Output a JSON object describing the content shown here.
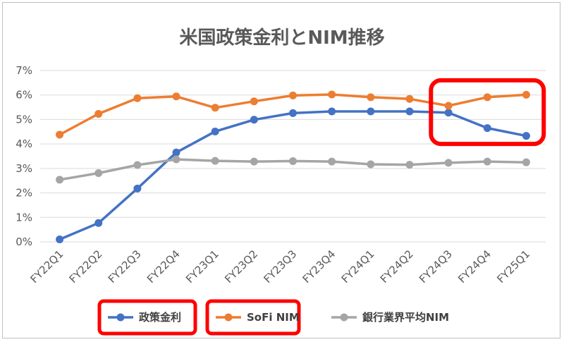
{
  "chart_data": {
    "type": "line",
    "title": "米国政策金利とNIM推移",
    "xlabel": "",
    "ylabel": "",
    "categories": [
      "FY22Q1",
      "FY22Q2",
      "FY22Q3",
      "FY22Q4",
      "FY23Q1",
      "FY23Q2",
      "FY23Q3",
      "FY23Q4",
      "FY24Q1",
      "FY24Q2",
      "FY24Q3",
      "FY24Q4",
      "FY25Q1"
    ],
    "yticks": [
      "0%",
      "1%",
      "2%",
      "3%",
      "4%",
      "5%",
      "6%",
      "7%"
    ],
    "ylim": [
      0,
      7
    ],
    "grid": true,
    "legend_position": "bottom",
    "series": [
      {
        "name": "政策金利",
        "color": "#4472C4",
        "values": [
          0.1,
          0.77,
          2.18,
          3.65,
          4.51,
          4.99,
          5.26,
          5.33,
          5.33,
          5.33,
          5.28,
          4.65,
          4.33
        ]
      },
      {
        "name": "SoFi NIM",
        "color": "#ED7D31",
        "values": [
          4.38,
          5.23,
          5.87,
          5.94,
          5.48,
          5.74,
          5.98,
          6.02,
          5.91,
          5.84,
          5.56,
          5.91,
          6.01
        ]
      },
      {
        "name": "銀行業界平均NIM",
        "color": "#A5A5A5",
        "values": [
          2.54,
          2.81,
          3.14,
          3.37,
          3.31,
          3.28,
          3.3,
          3.28,
          3.17,
          3.15,
          3.23,
          3.28,
          3.25
        ]
      }
    ],
    "highlights": [
      {
        "kind": "legend-box",
        "series": 0,
        "color": "#FF0000"
      },
      {
        "kind": "legend-box",
        "series": 1,
        "color": "#FF0000"
      },
      {
        "kind": "region-box",
        "from_category": 10,
        "to_category": 12,
        "ymin": 4.0,
        "ymax": 6.6,
        "color": "#FF0000"
      }
    ]
  }
}
